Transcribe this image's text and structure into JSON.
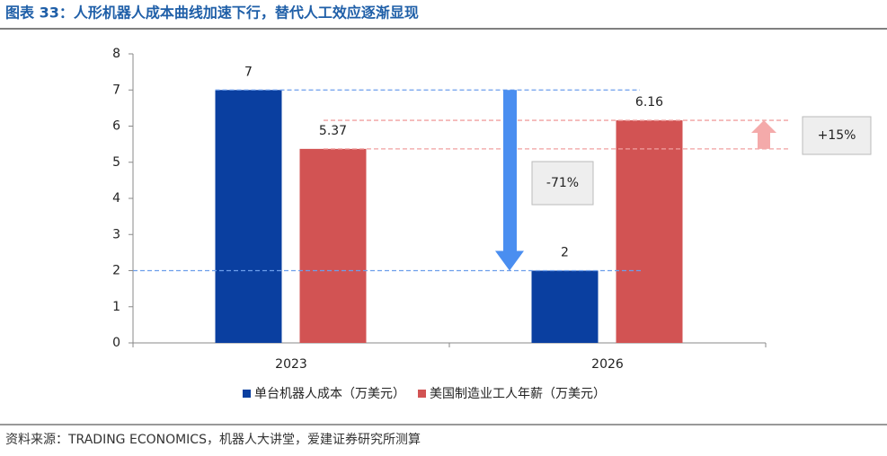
{
  "chart_data": {
    "type": "bar",
    "title": "图表 33：人形机器人成本曲线加速下行，替代人工效应逐渐显现",
    "categories": [
      "2023",
      "2026"
    ],
    "series": [
      {
        "name": "单台机器人成本（万美元）",
        "color": "#0a3fa0",
        "values": [
          7,
          2
        ]
      },
      {
        "name": "美国制造业工人年薪（万美元）",
        "color": "#d25353",
        "values": [
          5.37,
          6.16
        ]
      }
    ],
    "ylim": [
      0,
      8
    ],
    "yticks": [
      0,
      1,
      2,
      3,
      4,
      5,
      6,
      7,
      8
    ],
    "annotations": [
      "-71%",
      "+15%"
    ],
    "legend": "bottom",
    "source": "资料来源：TRADING ECONOMICS，机器人大讲堂，爱建证券研究所测算"
  }
}
